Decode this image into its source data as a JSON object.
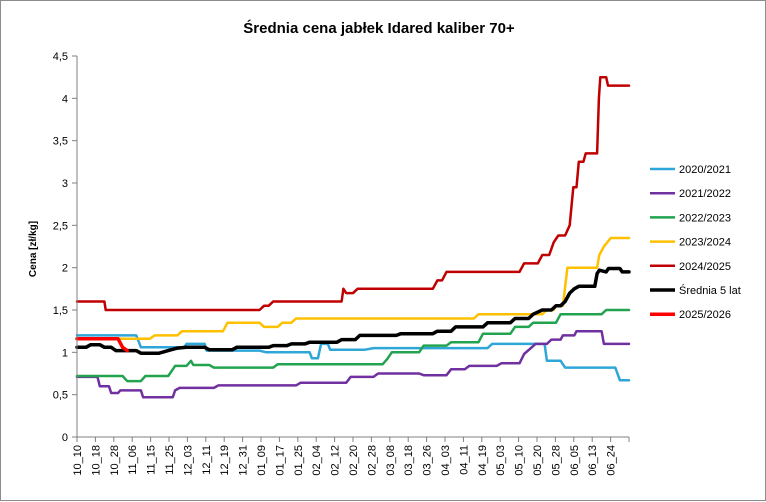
{
  "chart_data": {
    "type": "line",
    "title": "Średnia cena jabłek Idared kaliber 70+",
    "xlabel": "",
    "ylabel": "Cena [zł/kg]",
    "ylim": [
      0,
      4.5
    ],
    "yticks": [
      "0",
      "0,5",
      "1",
      "1,5",
      "2",
      "2,5",
      "3",
      "3,5",
      "4",
      "4,5"
    ],
    "grid": false,
    "legend_position": "right",
    "x_tick_labels": [
      "10_10",
      "10_18",
      "10_28",
      "11_06",
      "11_15",
      "11_25",
      "12_03",
      "12_11",
      "12_19",
      "12_31",
      "01_09",
      "01_17",
      "01_25",
      "02_04",
      "02_12",
      "02_20",
      "02_28",
      "03_08",
      "03_18",
      "03_26",
      "04_03",
      "04_11",
      "04_19",
      "05_03",
      "05_10",
      "05_20",
      "05_28",
      "06_05",
      "06_13",
      "06_24"
    ],
    "series": [
      {
        "name": "2020/2021",
        "color": "#2EA6D8",
        "width": 2.5,
        "points": [
          [
            0,
            1.2
          ],
          [
            13,
            1.2
          ],
          [
            14,
            1.06
          ],
          [
            23.5,
            1.06
          ],
          [
            24,
            1.1
          ],
          [
            28,
            1.1
          ],
          [
            28.4,
            1.02
          ],
          [
            40,
            1.02
          ],
          [
            41.5,
            1.0
          ],
          [
            51,
            1.0
          ],
          [
            51.5,
            0.93
          ],
          [
            52.8,
            0.93
          ],
          [
            53.5,
            1.1
          ],
          [
            55,
            1.1
          ],
          [
            55.5,
            1.03
          ],
          [
            63,
            1.03
          ],
          [
            65,
            1.05
          ],
          [
            90,
            1.05
          ],
          [
            91,
            1.1
          ],
          [
            102.5,
            1.1
          ],
          [
            103,
            0.9
          ],
          [
            106,
            0.9
          ],
          [
            107,
            0.82
          ],
          [
            118,
            0.82
          ],
          [
            119,
            0.67
          ],
          [
            121,
            0.67
          ]
        ]
      },
      {
        "name": "2021/2022",
        "color": "#7030A0",
        "width": 2.5,
        "points": [
          [
            0,
            0.71
          ],
          [
            4.5,
            0.71
          ],
          [
            5,
            0.6
          ],
          [
            7,
            0.6
          ],
          [
            7.5,
            0.52
          ],
          [
            9,
            0.52
          ],
          [
            9.5,
            0.55
          ],
          [
            14,
            0.55
          ],
          [
            14.5,
            0.47
          ],
          [
            21,
            0.47
          ],
          [
            21.5,
            0.55
          ],
          [
            22.5,
            0.58
          ],
          [
            30,
            0.58
          ],
          [
            31,
            0.61
          ],
          [
            48,
            0.61
          ],
          [
            49,
            0.64
          ],
          [
            59,
            0.64
          ],
          [
            60,
            0.71
          ],
          [
            65,
            0.71
          ],
          [
            66,
            0.75
          ],
          [
            75,
            0.75
          ],
          [
            76,
            0.73
          ],
          [
            81,
            0.73
          ],
          [
            82,
            0.8
          ],
          [
            85,
            0.8
          ],
          [
            86,
            0.84
          ],
          [
            92,
            0.84
          ],
          [
            93,
            0.87
          ],
          [
            97,
            0.87
          ],
          [
            98,
            0.98
          ],
          [
            99.5,
            1.05
          ],
          [
            100.5,
            1.1
          ],
          [
            103,
            1.1
          ],
          [
            104,
            1.15
          ],
          [
            106,
            1.15
          ],
          [
            106.5,
            1.2
          ],
          [
            109,
            1.2
          ],
          [
            109.5,
            1.25
          ],
          [
            115,
            1.25
          ],
          [
            115.5,
            1.1
          ],
          [
            121,
            1.1
          ]
        ]
      },
      {
        "name": "2022/2023",
        "color": "#22A34F",
        "width": 2.5,
        "points": [
          [
            0,
            0.72
          ],
          [
            10,
            0.72
          ],
          [
            11,
            0.66
          ],
          [
            14,
            0.66
          ],
          [
            15,
            0.72
          ],
          [
            20,
            0.72
          ],
          [
            21,
            0.8
          ],
          [
            21.5,
            0.84
          ],
          [
            24,
            0.84
          ],
          [
            25,
            0.9
          ],
          [
            25.5,
            0.85
          ],
          [
            29,
            0.85
          ],
          [
            30,
            0.82
          ],
          [
            43,
            0.82
          ],
          [
            44,
            0.86
          ],
          [
            67,
            0.86
          ],
          [
            68,
            0.92
          ],
          [
            69,
            1.0
          ],
          [
            75,
            1.0
          ],
          [
            76,
            1.08
          ],
          [
            81,
            1.08
          ],
          [
            82,
            1.12
          ],
          [
            88,
            1.12
          ],
          [
            89,
            1.22
          ],
          [
            95,
            1.22
          ],
          [
            96,
            1.3
          ],
          [
            99,
            1.3
          ],
          [
            100,
            1.35
          ],
          [
            105,
            1.35
          ],
          [
            106,
            1.45
          ],
          [
            115,
            1.45
          ],
          [
            116,
            1.5
          ],
          [
            121,
            1.5
          ]
        ]
      },
      {
        "name": "2023/2024",
        "color": "#FFC000",
        "width": 2.5,
        "points": [
          [
            0,
            1.16
          ],
          [
            16,
            1.16
          ],
          [
            17,
            1.2
          ],
          [
            22,
            1.2
          ],
          [
            23,
            1.25
          ],
          [
            32,
            1.25
          ],
          [
            33,
            1.35
          ],
          [
            40,
            1.35
          ],
          [
            41,
            1.3
          ],
          [
            44,
            1.3
          ],
          [
            45,
            1.35
          ],
          [
            47,
            1.35
          ],
          [
            48,
            1.4
          ],
          [
            87,
            1.4
          ],
          [
            88,
            1.45
          ],
          [
            102,
            1.45
          ],
          [
            103,
            1.5
          ],
          [
            104.5,
            1.5
          ],
          [
            105,
            1.55
          ],
          [
            106.5,
            1.55
          ],
          [
            107.5,
            2.0
          ],
          [
            114,
            2.0
          ],
          [
            114.5,
            2.15
          ],
          [
            115.5,
            2.25
          ],
          [
            117,
            2.35
          ],
          [
            121,
            2.35
          ]
        ]
      },
      {
        "name": "2024/2025",
        "color": "#C00000",
        "width": 2.5,
        "points": [
          [
            0,
            1.6
          ],
          [
            6,
            1.6
          ],
          [
            6.3,
            1.5
          ],
          [
            40,
            1.5
          ],
          [
            41,
            1.55
          ],
          [
            42,
            1.55
          ],
          [
            43,
            1.6
          ],
          [
            58,
            1.6
          ],
          [
            58.4,
            1.75
          ],
          [
            59,
            1.7
          ],
          [
            60.5,
            1.7
          ],
          [
            61.5,
            1.75
          ],
          [
            78,
            1.75
          ],
          [
            79,
            1.85
          ],
          [
            80,
            1.85
          ],
          [
            81,
            1.95
          ],
          [
            97,
            1.95
          ],
          [
            98,
            2.05
          ],
          [
            101,
            2.05
          ],
          [
            102,
            2.15
          ],
          [
            103.5,
            2.15
          ],
          [
            104.5,
            2.3
          ],
          [
            105.5,
            2.38
          ],
          [
            107,
            2.38
          ],
          [
            108,
            2.5
          ],
          [
            108.8,
            2.95
          ],
          [
            109.5,
            2.95
          ],
          [
            110,
            3.25
          ],
          [
            111,
            3.25
          ],
          [
            111.5,
            3.35
          ],
          [
            114,
            3.35
          ],
          [
            114.4,
            4.0
          ],
          [
            114.7,
            4.25
          ],
          [
            116,
            4.25
          ],
          [
            116.4,
            4.15
          ],
          [
            121,
            4.15
          ]
        ]
      },
      {
        "name": "Średnia 5 lat",
        "color": "#000000",
        "width": 3.5,
        "points": [
          [
            0,
            1.06
          ],
          [
            2,
            1.06
          ],
          [
            3,
            1.09
          ],
          [
            5,
            1.09
          ],
          [
            6,
            1.06
          ],
          [
            7.5,
            1.06
          ],
          [
            8.5,
            1.02
          ],
          [
            13,
            1.02
          ],
          [
            14,
            0.99
          ],
          [
            18,
            0.99
          ],
          [
            20,
            1.02
          ],
          [
            22,
            1.05
          ],
          [
            24,
            1.06
          ],
          [
            28,
            1.06
          ],
          [
            29,
            1.03
          ],
          [
            34,
            1.03
          ],
          [
            35,
            1.06
          ],
          [
            42,
            1.06
          ],
          [
            43,
            1.08
          ],
          [
            46,
            1.08
          ],
          [
            47,
            1.1
          ],
          [
            50,
            1.1
          ],
          [
            51,
            1.12
          ],
          [
            57,
            1.12
          ],
          [
            58,
            1.15
          ],
          [
            61,
            1.15
          ],
          [
            62,
            1.2
          ],
          [
            70,
            1.2
          ],
          [
            71,
            1.22
          ],
          [
            78,
            1.22
          ],
          [
            79,
            1.25
          ],
          [
            82,
            1.25
          ],
          [
            83,
            1.3
          ],
          [
            89,
            1.3
          ],
          [
            90,
            1.35
          ],
          [
            95,
            1.35
          ],
          [
            96,
            1.4
          ],
          [
            99,
            1.4
          ],
          [
            100,
            1.45
          ],
          [
            102,
            1.5
          ],
          [
            104,
            1.5
          ],
          [
            105,
            1.55
          ],
          [
            106,
            1.55
          ],
          [
            107,
            1.6
          ],
          [
            108,
            1.7
          ],
          [
            109,
            1.75
          ],
          [
            110,
            1.78
          ],
          [
            113.5,
            1.78
          ],
          [
            114,
            1.93
          ],
          [
            114.5,
            1.97
          ],
          [
            116,
            1.95
          ],
          [
            116.5,
            1.99
          ],
          [
            119,
            1.99
          ],
          [
            119.5,
            1.95
          ],
          [
            121,
            1.95
          ]
        ]
      },
      {
        "name": "2025/2026",
        "color": "#FF0000",
        "width": 3.5,
        "points": [
          [
            0,
            1.16
          ],
          [
            9,
            1.16
          ],
          [
            10,
            1.06
          ],
          [
            11,
            1.02
          ]
        ]
      }
    ]
  }
}
